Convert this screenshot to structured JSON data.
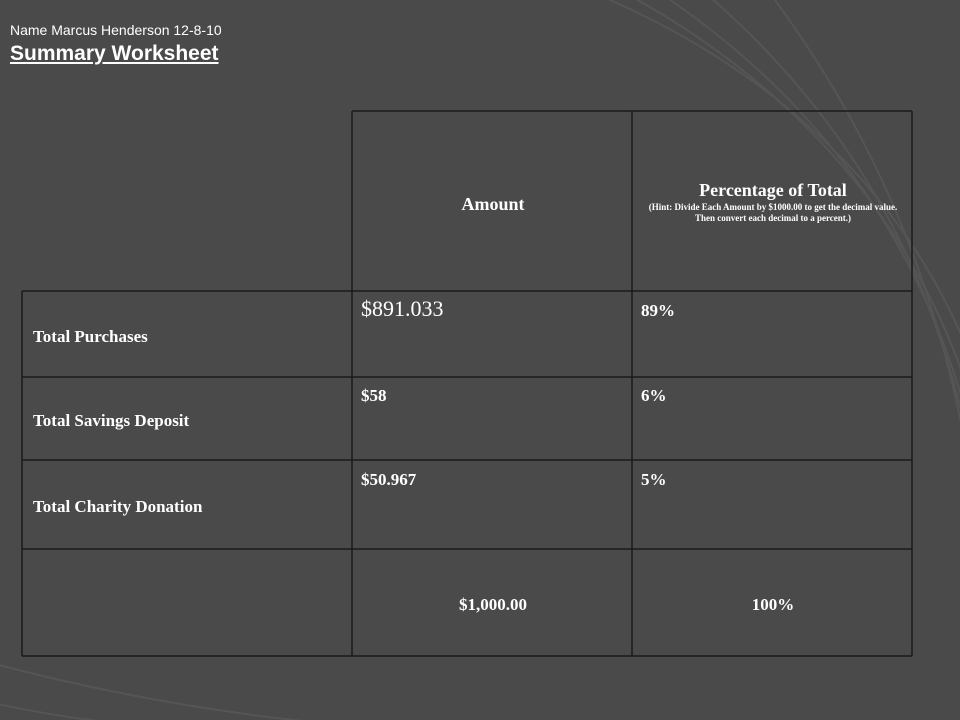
{
  "header": {
    "name_line": "Name Marcus Henderson 12-8-10",
    "title": "Summary Worksheet"
  },
  "table": {
    "columns": {
      "amount": "Amount",
      "percentage": "Percentage of Total",
      "hint": "(Hint: Divide Each Amount by $1000.00 to get the decimal value.  Then convert each decimal to a percent.)"
    },
    "rows": [
      {
        "label": "Total Purchases",
        "amount": "$891.033",
        "percent": "89%"
      },
      {
        "label": "Total Savings Deposit",
        "amount": "$58",
        "percent": "6%"
      },
      {
        "label": "Total Charity Donation",
        "amount": "$50.967",
        "percent": "5%"
      }
    ],
    "totals": {
      "amount": "$1,000.00",
      "percent": "100%"
    }
  },
  "colors": {
    "background": "#4a4a4a",
    "line": "#1a1a1a",
    "text": "#ffffff"
  }
}
